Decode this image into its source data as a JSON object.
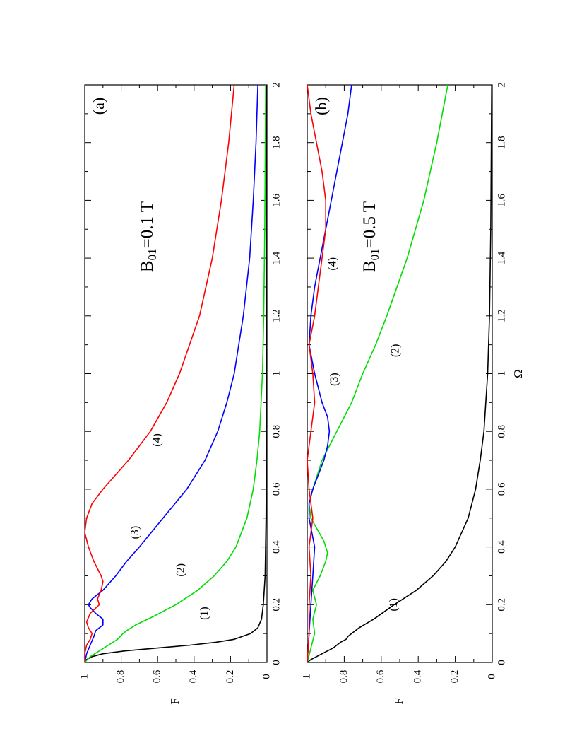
{
  "chart_data": [
    {
      "type": "line",
      "panel_label": "(a)",
      "annotation": "B01=0.1 T",
      "annotation_main": "B",
      "annotation_sub": "01",
      "annotation_rest": "=0.1 T",
      "xlabel": "",
      "ylabel": "F",
      "xlim": [
        0,
        2
      ],
      "ylim": [
        0,
        1
      ],
      "x_ticks": [
        "0",
        "0.2",
        "0.4",
        "0.6",
        "0.8",
        "1",
        "1.2",
        "1.4",
        "1.6",
        "1.8",
        "2"
      ],
      "y_ticks": [
        "0",
        "0.2",
        "0.4",
        "0.6",
        "0.8",
        "1"
      ],
      "series": [
        {
          "label": "(1)",
          "color": "#000000",
          "label_at": [
            0.17,
            0.34
          ],
          "points": [
            [
              0,
              1
            ],
            [
              0.01,
              0.99
            ],
            [
              0.02,
              0.96
            ],
            [
              0.03,
              0.9
            ],
            [
              0.04,
              0.78
            ],
            [
              0.05,
              0.6
            ],
            [
              0.06,
              0.42
            ],
            [
              0.07,
              0.28
            ],
            [
              0.08,
              0.18
            ],
            [
              0.1,
              0.09
            ],
            [
              0.12,
              0.05
            ],
            [
              0.15,
              0.03
            ],
            [
              0.2,
              0.02
            ],
            [
              0.3,
              0.01
            ],
            [
              0.5,
              0.005
            ],
            [
              1,
              0.002
            ],
            [
              2,
              0.001
            ]
          ]
        },
        {
          "label": "(2)",
          "color": "#00dd00",
          "label_at": [
            0.32,
            0.47
          ],
          "points": [
            [
              0,
              1
            ],
            [
              0.02,
              0.97
            ],
            [
              0.04,
              0.92
            ],
            [
              0.06,
              0.87
            ],
            [
              0.08,
              0.82
            ],
            [
              0.1,
              0.79
            ],
            [
              0.11,
              0.77
            ],
            [
              0.13,
              0.72
            ],
            [
              0.16,
              0.62
            ],
            [
              0.2,
              0.5
            ],
            [
              0.25,
              0.38
            ],
            [
              0.3,
              0.29
            ],
            [
              0.35,
              0.22
            ],
            [
              0.4,
              0.17
            ],
            [
              0.5,
              0.11
            ],
            [
              0.6,
              0.075
            ],
            [
              0.7,
              0.055
            ],
            [
              0.8,
              0.04
            ],
            [
              1,
              0.025
            ],
            [
              1.2,
              0.018
            ],
            [
              1.5,
              0.012
            ],
            [
              2,
              0.007
            ]
          ]
        },
        {
          "label": "(3)",
          "color": "#0000ff",
          "label_at": [
            0.45,
            0.72
          ],
          "points": [
            [
              0,
              1
            ],
            [
              0.03,
              0.99
            ],
            [
              0.06,
              0.97
            ],
            [
              0.09,
              0.95
            ],
            [
              0.11,
              0.94
            ],
            [
              0.13,
              0.9
            ],
            [
              0.15,
              0.9
            ],
            [
              0.17,
              0.94
            ],
            [
              0.19,
              0.97
            ],
            [
              0.2,
              0.98
            ],
            [
              0.22,
              0.96
            ],
            [
              0.25,
              0.9
            ],
            [
              0.3,
              0.83
            ],
            [
              0.35,
              0.77
            ],
            [
              0.4,
              0.7
            ],
            [
              0.5,
              0.57
            ],
            [
              0.6,
              0.44
            ],
            [
              0.7,
              0.34
            ],
            [
              0.8,
              0.27
            ],
            [
              0.9,
              0.22
            ],
            [
              1,
              0.18
            ],
            [
              1.2,
              0.13
            ],
            [
              1.4,
              0.095
            ],
            [
              1.6,
              0.075
            ],
            [
              1.8,
              0.06
            ],
            [
              2,
              0.05
            ]
          ]
        },
        {
          "label": "(4)",
          "color": "#ff0000",
          "label_at": [
            0.77,
            0.6
          ],
          "points": [
            [
              0,
              1
            ],
            [
              0.03,
              1
            ],
            [
              0.06,
              0.99
            ],
            [
              0.08,
              0.97
            ],
            [
              0.1,
              0.96
            ],
            [
              0.12,
              0.98
            ],
            [
              0.14,
              0.99
            ],
            [
              0.17,
              0.97
            ],
            [
              0.2,
              0.92
            ],
            [
              0.22,
              0.93
            ],
            [
              0.25,
              0.91
            ],
            [
              0.28,
              0.9
            ],
            [
              0.3,
              0.91
            ],
            [
              0.35,
              0.95
            ],
            [
              0.4,
              0.98
            ],
            [
              0.45,
              1
            ],
            [
              0.5,
              0.99
            ],
            [
              0.55,
              0.96
            ],
            [
              0.6,
              0.9
            ],
            [
              0.7,
              0.76
            ],
            [
              0.8,
              0.64
            ],
            [
              0.9,
              0.55
            ],
            [
              1,
              0.48
            ],
            [
              1.2,
              0.37
            ],
            [
              1.4,
              0.3
            ],
            [
              1.6,
              0.25
            ],
            [
              1.8,
              0.21
            ],
            [
              2,
              0.18
            ]
          ]
        }
      ]
    },
    {
      "type": "line",
      "panel_label": "(b)",
      "annotation": "B01=0.5 T",
      "annotation_main": "B",
      "annotation_sub": "01",
      "annotation_rest": "=0.5 T",
      "xlabel": "Ω",
      "ylabel": "F",
      "xlim": [
        0,
        2
      ],
      "ylim": [
        0,
        1
      ],
      "x_ticks": [
        "0",
        "0.2",
        "0.4",
        "0.6",
        "0.8",
        "1",
        "1.2",
        "1.4",
        "1.6",
        "1.8",
        "2"
      ],
      "y_ticks": [
        "0",
        "0.2",
        "0.4",
        "0.6",
        "0.8",
        "1"
      ],
      "series": [
        {
          "label": "(1)",
          "color": "#000000",
          "label_at": [
            0.2,
            0.53
          ],
          "points": [
            [
              0,
              1
            ],
            [
              0.01,
              0.98
            ],
            [
              0.03,
              0.92
            ],
            [
              0.05,
              0.86
            ],
            [
              0.07,
              0.82
            ],
            [
              0.08,
              0.79
            ],
            [
              0.09,
              0.78
            ],
            [
              0.1,
              0.76
            ],
            [
              0.12,
              0.72
            ],
            [
              0.15,
              0.64
            ],
            [
              0.2,
              0.53
            ],
            [
              0.25,
              0.41
            ],
            [
              0.3,
              0.32
            ],
            [
              0.35,
              0.25
            ],
            [
              0.4,
              0.2
            ],
            [
              0.5,
              0.13
            ],
            [
              0.6,
              0.09
            ],
            [
              0.7,
              0.065
            ],
            [
              0.8,
              0.045
            ],
            [
              1,
              0.025
            ],
            [
              1.2,
              0.015
            ],
            [
              1.5,
              0.008
            ],
            [
              2,
              0.003
            ]
          ]
        },
        {
          "label": "(2)",
          "color": "#00dd00",
          "label_at": [
            1.08,
            0.52
          ],
          "points": [
            [
              0,
              1
            ],
            [
              0.05,
              0.98
            ],
            [
              0.1,
              0.96
            ],
            [
              0.15,
              0.97
            ],
            [
              0.2,
              0.95
            ],
            [
              0.25,
              0.97
            ],
            [
              0.3,
              0.93
            ],
            [
              0.35,
              0.9
            ],
            [
              0.38,
              0.89
            ],
            [
              0.42,
              0.91
            ],
            [
              0.5,
              0.98
            ],
            [
              0.55,
              0.99
            ],
            [
              0.6,
              0.97
            ],
            [
              0.7,
              0.92
            ],
            [
              0.8,
              0.84
            ],
            [
              0.9,
              0.76
            ],
            [
              1,
              0.7
            ],
            [
              1.1,
              0.63
            ],
            [
              1.2,
              0.57
            ],
            [
              1.4,
              0.46
            ],
            [
              1.6,
              0.37
            ],
            [
              1.8,
              0.3
            ],
            [
              2,
              0.24
            ]
          ]
        },
        {
          "label": "(3)",
          "color": "#0000ff",
          "label_at": [
            0.98,
            0.85
          ],
          "points": [
            [
              0,
              1
            ],
            [
              0.1,
              0.99
            ],
            [
              0.2,
              0.98
            ],
            [
              0.3,
              0.97
            ],
            [
              0.4,
              0.96
            ],
            [
              0.5,
              0.99
            ],
            [
              0.55,
              0.99
            ],
            [
              0.6,
              0.97
            ],
            [
              0.65,
              0.94
            ],
            [
              0.7,
              0.91
            ],
            [
              0.75,
              0.89
            ],
            [
              0.8,
              0.88
            ],
            [
              0.85,
              0.89
            ],
            [
              0.9,
              0.92
            ],
            [
              1,
              0.96
            ],
            [
              1.1,
              0.99
            ],
            [
              1.2,
              0.98
            ],
            [
              1.3,
              0.96
            ],
            [
              1.4,
              0.93
            ],
            [
              1.5,
              0.9
            ],
            [
              1.6,
              0.87
            ],
            [
              1.7,
              0.84
            ],
            [
              1.8,
              0.81
            ],
            [
              1.9,
              0.78
            ],
            [
              2,
              0.76
            ]
          ]
        },
        {
          "label": "(4)",
          "color": "#ff0000",
          "label_at": [
            1.38,
            0.86
          ],
          "points": [
            [
              0,
              1
            ],
            [
              0.1,
              0.99
            ],
            [
              0.2,
              0.99
            ],
            [
              0.3,
              0.98
            ],
            [
              0.4,
              0.99
            ],
            [
              0.5,
              0.97
            ],
            [
              0.6,
              0.99
            ],
            [
              0.7,
              1
            ],
            [
              0.8,
              0.98
            ],
            [
              0.85,
              0.97
            ],
            [
              0.9,
              0.96
            ],
            [
              1,
              0.97
            ],
            [
              1.1,
              0.99
            ],
            [
              1.2,
              0.96
            ],
            [
              1.25,
              0.95
            ],
            [
              1.3,
              0.94
            ],
            [
              1.4,
              0.92
            ],
            [
              1.5,
              0.9
            ],
            [
              1.6,
              0.9
            ],
            [
              1.7,
              0.92
            ],
            [
              1.8,
              0.95
            ],
            [
              1.9,
              0.98
            ],
            [
              2,
              1
            ]
          ]
        }
      ]
    }
  ]
}
